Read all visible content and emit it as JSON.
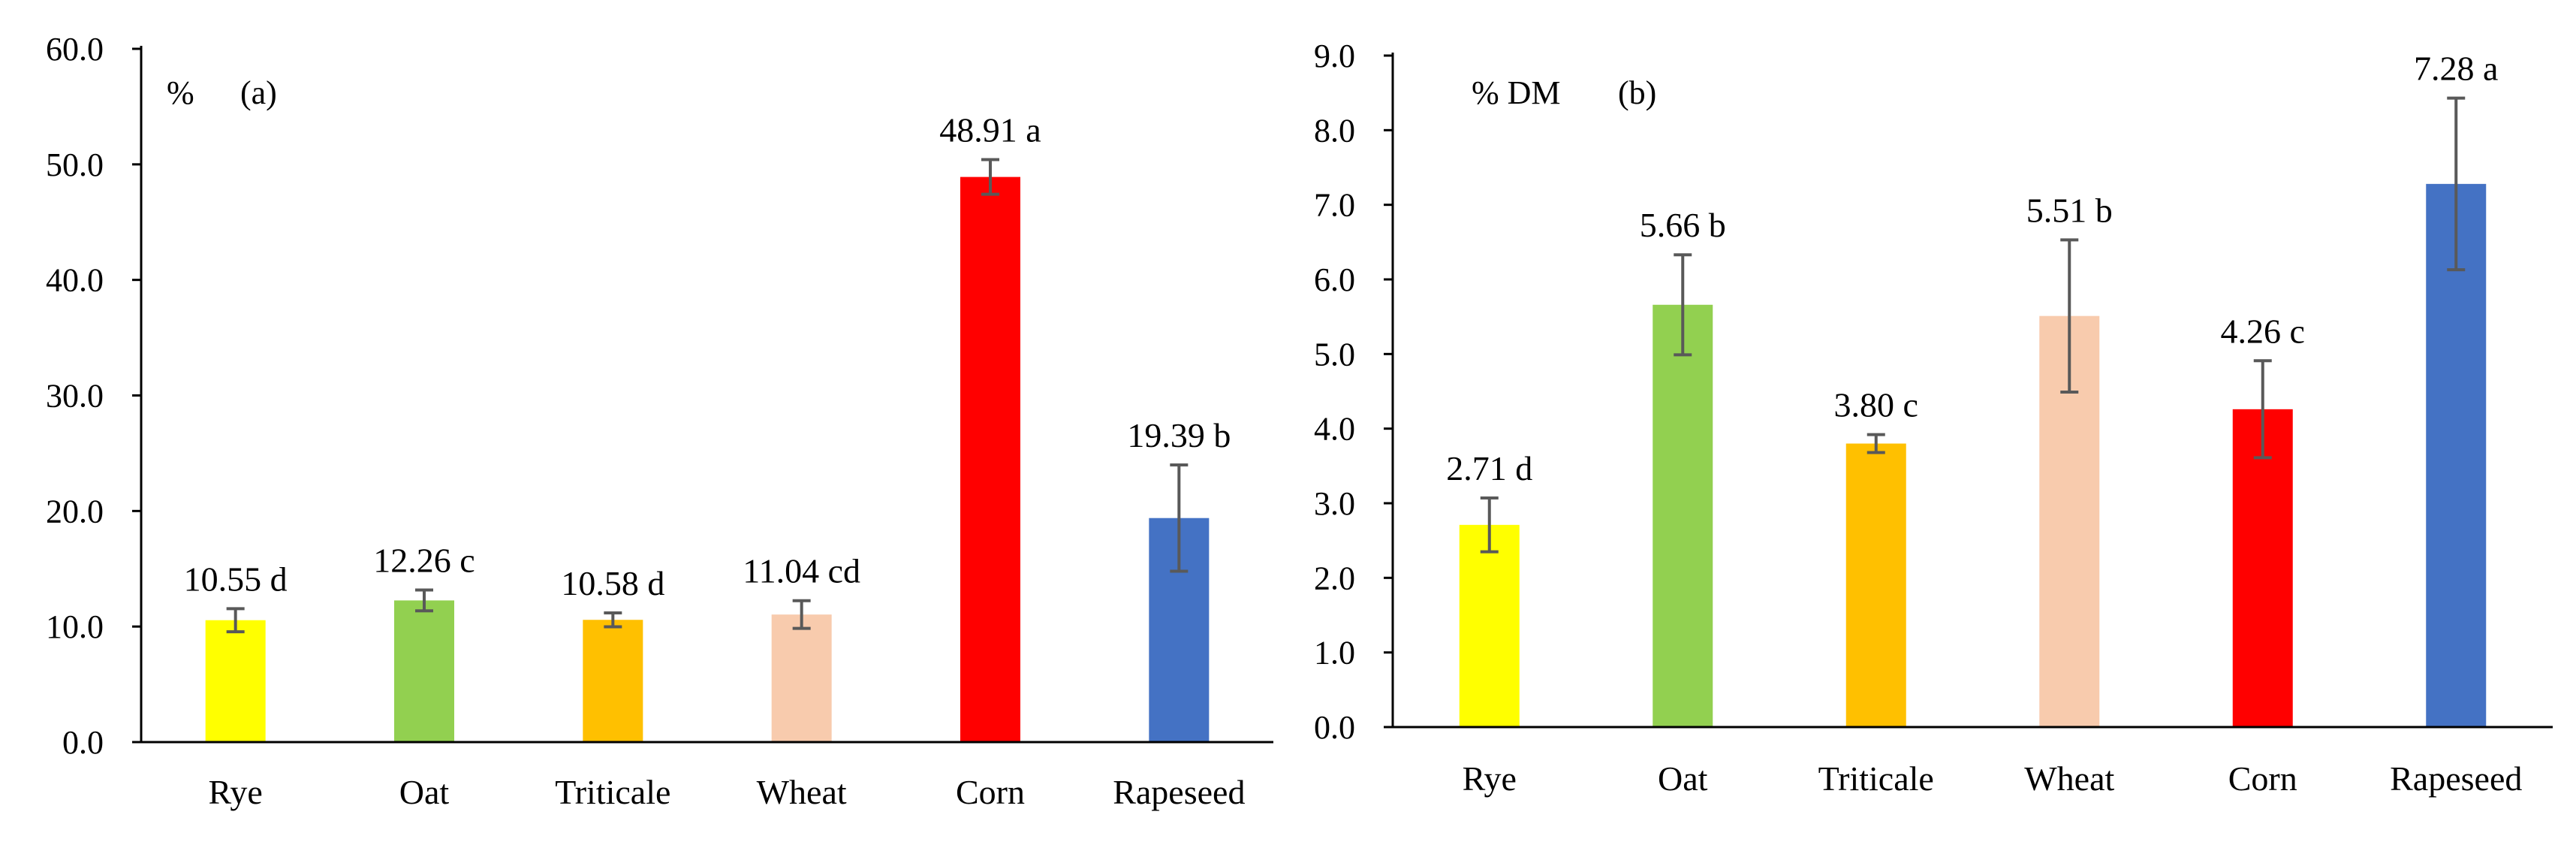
{
  "chart_data": [
    {
      "type": "bar",
      "panel_label": "(a)",
      "unit_label": "%",
      "categories": [
        "Rye",
        "Oat",
        "Triticale",
        "Wheat",
        "Corn",
        "Rapeseed"
      ],
      "values": [
        10.55,
        12.26,
        10.58,
        11.04,
        48.91,
        19.39
      ],
      "errors": [
        1.0,
        0.9,
        0.6,
        1.2,
        1.5,
        4.6
      ],
      "data_labels": [
        "10.55 d",
        "12.26 c",
        "10.58 d",
        "11.04 cd",
        "48.91 a",
        "19.39 b"
      ],
      "colors": [
        "#FFFF00",
        "#92D050",
        "#FFC000",
        "#F8CBAD",
        "#FF0000",
        "#4472C4"
      ],
      "ylim": [
        0,
        60
      ],
      "yticks": [
        "0.0",
        "10.0",
        "20.0",
        "30.0",
        "40.0",
        "50.0",
        "60.0"
      ],
      "grid": false
    },
    {
      "type": "bar",
      "panel_label": "(b)",
      "unit_label": "% DM",
      "categories": [
        "Rye",
        "Oat",
        "Triticale",
        "Wheat",
        "Corn",
        "Rapeseed"
      ],
      "values": [
        2.71,
        5.66,
        3.8,
        5.51,
        4.26,
        7.28
      ],
      "errors": [
        0.36,
        0.67,
        0.12,
        1.02,
        0.65,
        1.15
      ],
      "data_labels": [
        "2.71 d",
        "5.66 b",
        "3.80 c",
        "5.51 b",
        "4.26 c",
        "7.28 a"
      ],
      "colors": [
        "#FFFF00",
        "#92D050",
        "#FFC000",
        "#F8CBAD",
        "#FF0000",
        "#4472C4"
      ],
      "ylim": [
        0,
        9
      ],
      "yticks": [
        "0.0",
        "1.0",
        "2.0",
        "3.0",
        "4.0",
        "5.0",
        "6.0",
        "7.0",
        "8.0",
        "9.0"
      ],
      "grid": false
    }
  ]
}
